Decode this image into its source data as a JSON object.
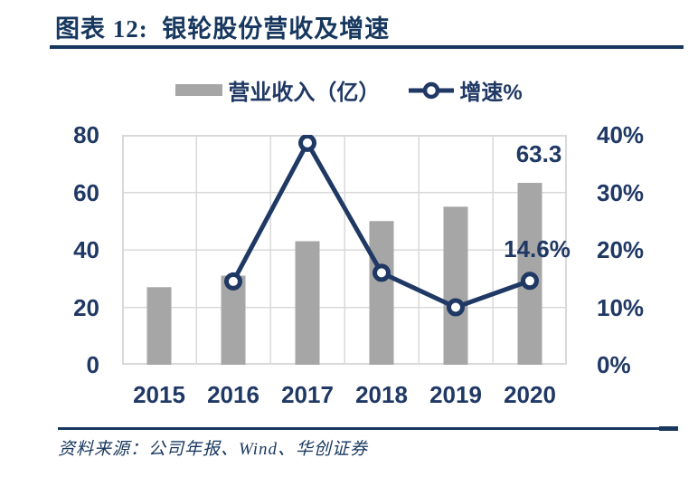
{
  "header": {
    "title": "图表 12:  银轮股份营收及增速"
  },
  "colors": {
    "navy": "#1F3864",
    "title_navy": "#17375E",
    "bar_gray": "#A6A6A6",
    "grid_gray": "#D9D9D9",
    "marker_fill": "#FFFFFF"
  },
  "chart_data": {
    "type": "bar+line",
    "categories": [
      "2015",
      "2016",
      "2017",
      "2018",
      "2019",
      "2020"
    ],
    "series": [
      {
        "name": "营业收入（亿）",
        "type": "bar",
        "axis": "left",
        "color": "#A6A6A6",
        "values": [
          27,
          31,
          43,
          50,
          55,
          63.3
        ]
      },
      {
        "name": "增速%",
        "type": "line",
        "axis": "right",
        "color": "#1F3864",
        "values": [
          null,
          14.5,
          38.6,
          16,
          10,
          14.6
        ]
      }
    ],
    "y_left": {
      "min": 0,
      "max": 80,
      "ticks": [
        "80",
        "60",
        "40",
        "20",
        "0"
      ]
    },
    "y_right": {
      "min": 0,
      "max": 40,
      "ticks": [
        "40%",
        "30%",
        "20%",
        "10%",
        "0%"
      ]
    },
    "annotations": [
      {
        "text": "63.3",
        "series": "营业收入（亿）",
        "category": "2020"
      },
      {
        "text": "14.6%",
        "series": "增速%",
        "category": "2020"
      }
    ],
    "grid": {
      "horizontal": true,
      "vertical": true,
      "color": "#D9D9D9"
    },
    "legend_position": "top"
  },
  "footer": {
    "source_text": "资料来源：公司年报、Wind、华创证券"
  }
}
